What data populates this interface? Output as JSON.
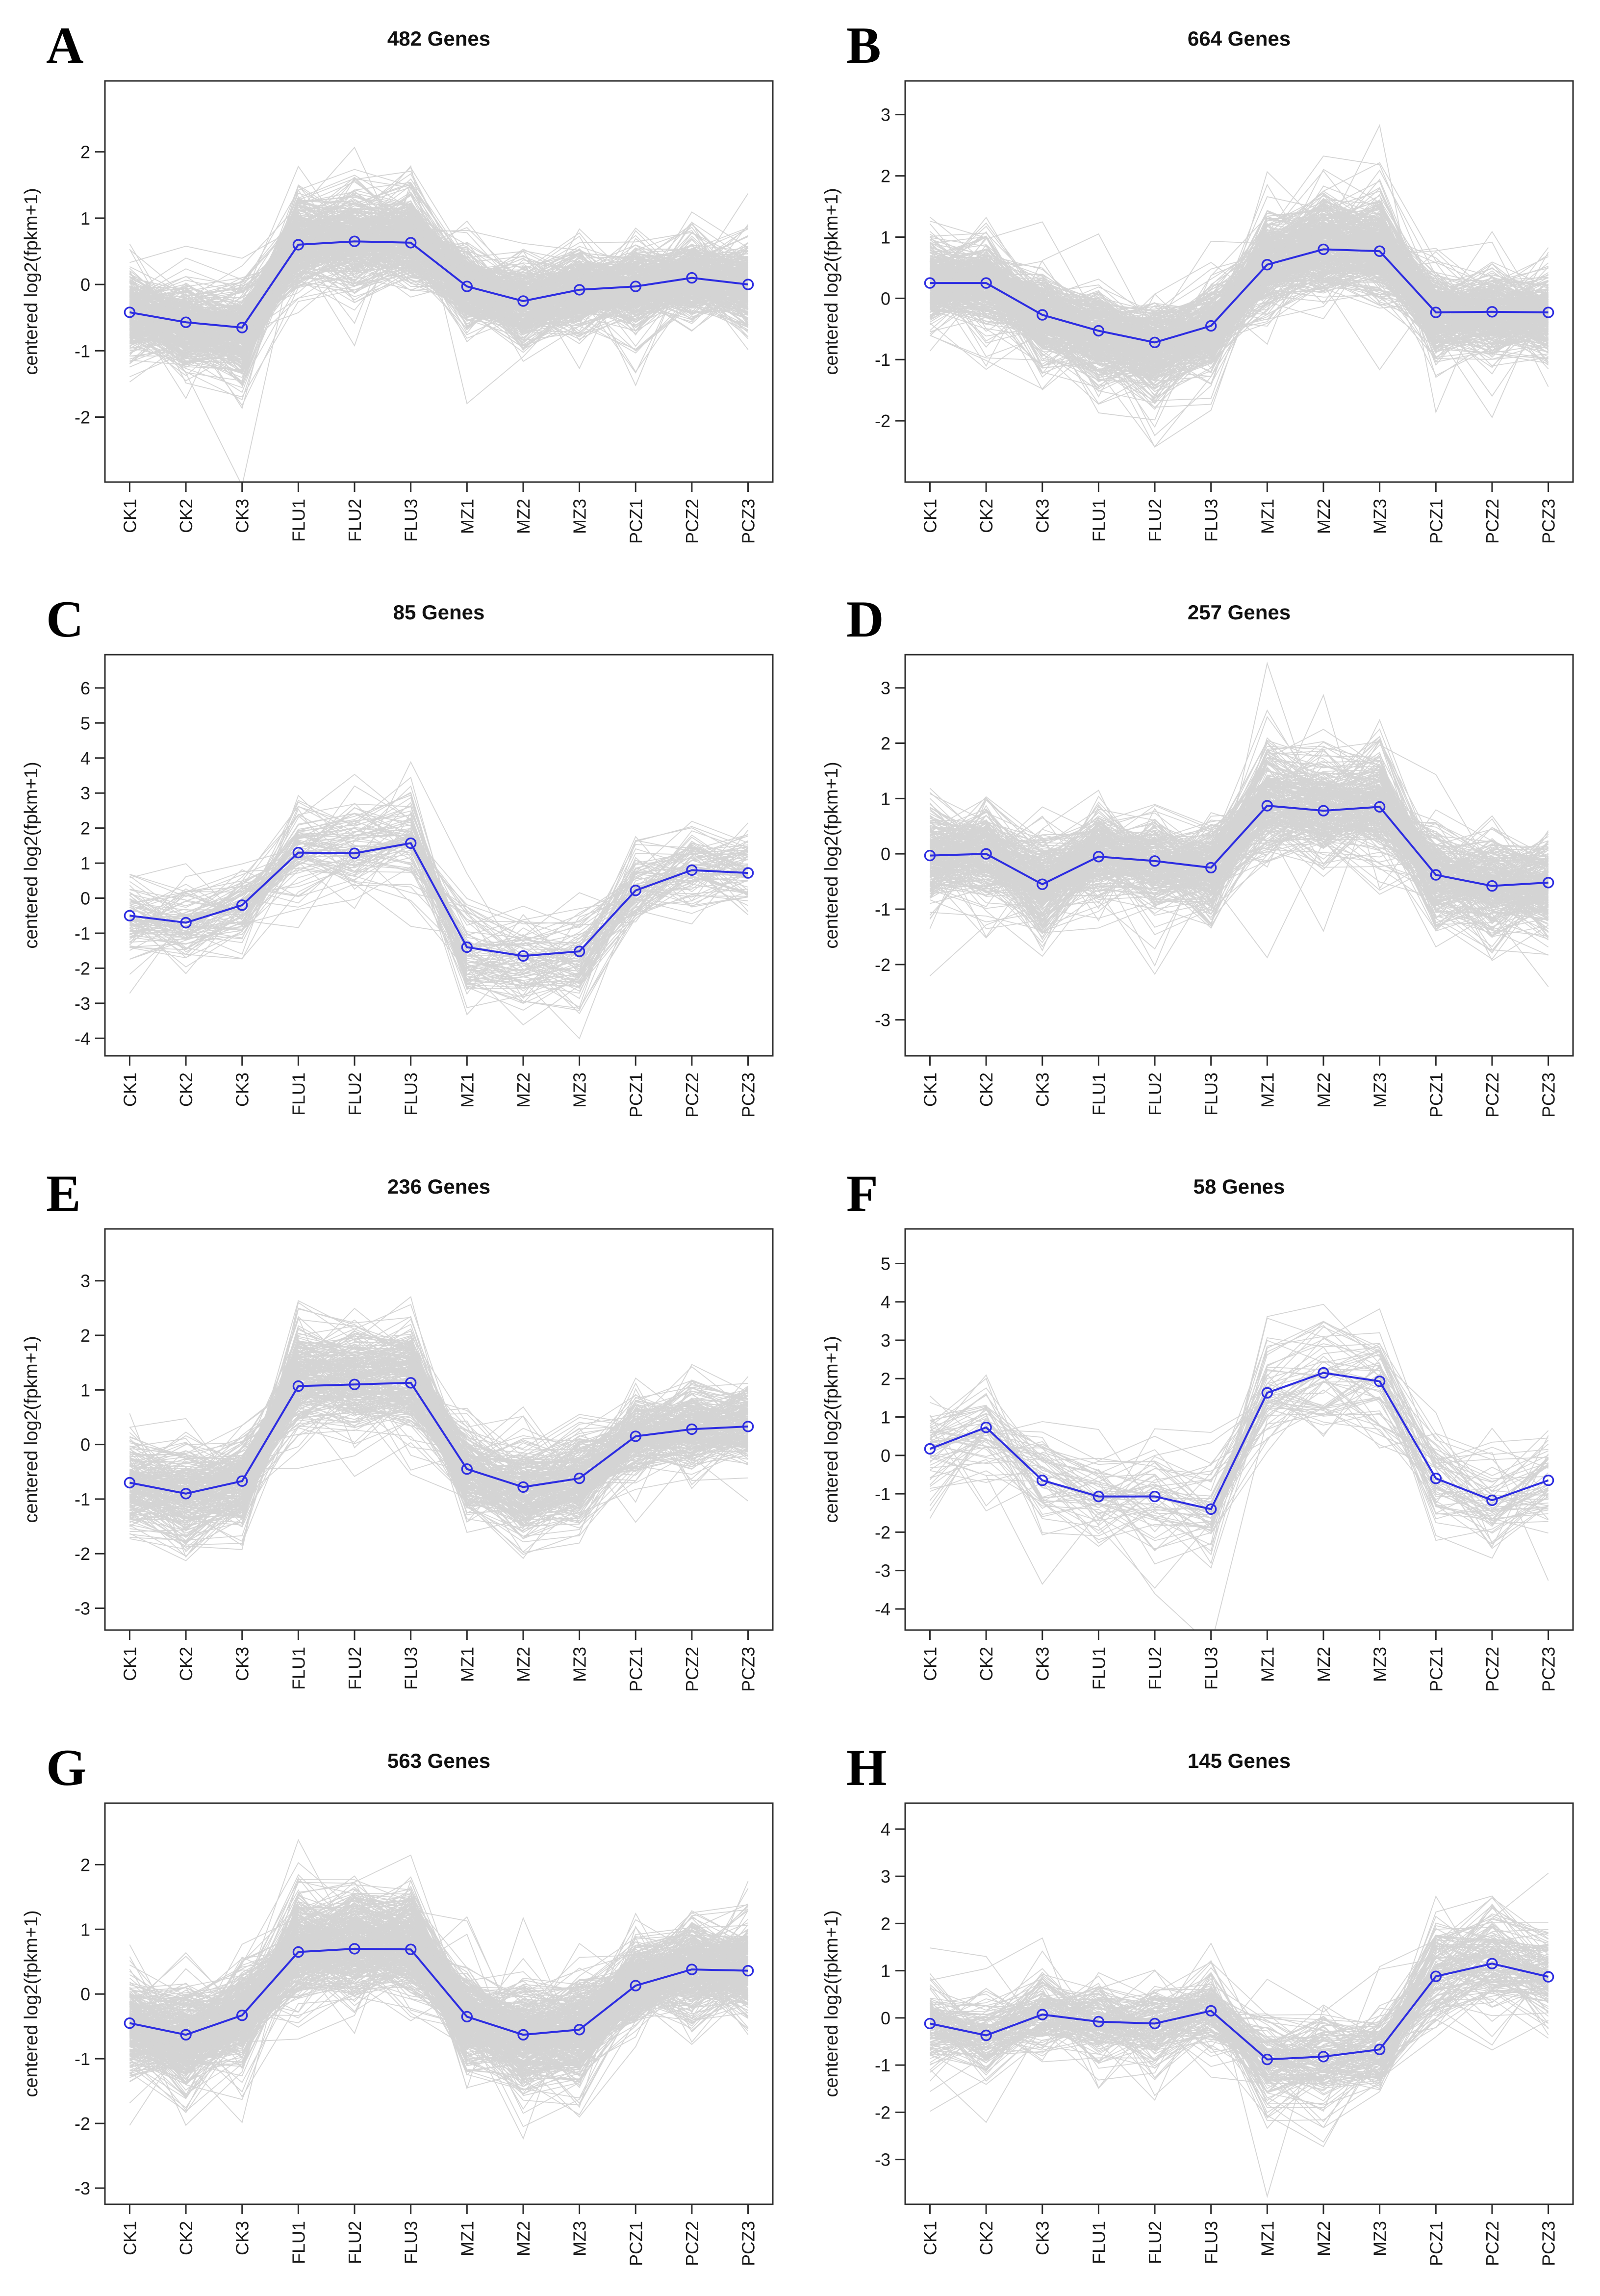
{
  "figure": {
    "colors": {
      "mean_line": "#2d2de1",
      "gene_lines": "#d4d4d4",
      "axis": "#2b2b2b",
      "text": "#1a1a1a",
      "background": "#ffffff"
    }
  },
  "chart_data": [
    {
      "type": "line",
      "panel": "A",
      "title": "482 Genes",
      "gene_count": 482,
      "categories": [
        "CK1",
        "CK2",
        "CK3",
        "FLU1",
        "FLU2",
        "FLU3",
        "MZ1",
        "MZ2",
        "MZ3",
        "PCZ1",
        "PCZ2",
        "PCZ3"
      ],
      "xlabel": "",
      "ylabel": "centered log2(fpkm+1)",
      "yticks": [
        -2,
        -1,
        0,
        1,
        2
      ],
      "ylim": [
        -2.98,
        3.07
      ],
      "grid": false,
      "band_hint": 0.28,
      "series": [
        {
          "name": "cluster mean",
          "values": [
            -0.42,
            -0.57,
            -0.65,
            0.6,
            0.65,
            0.63,
            -0.03,
            -0.25,
            -0.08,
            -0.03,
            0.1,
            0.0
          ]
        }
      ]
    },
    {
      "type": "line",
      "panel": "B",
      "title": "664 Genes",
      "gene_count": 664,
      "categories": [
        "CK1",
        "CK2",
        "CK3",
        "FLU1",
        "FLU2",
        "FLU3",
        "MZ1",
        "MZ2",
        "MZ3",
        "PCZ1",
        "PCZ2",
        "PCZ3"
      ],
      "xlabel": "",
      "ylabel": "centered log2(fpkm+1)",
      "yticks": [
        -2,
        -1,
        0,
        1,
        2,
        3
      ],
      "ylim": [
        -3.0,
        3.55
      ],
      "grid": false,
      "band_hint": 0.3,
      "series": [
        {
          "name": "cluster mean",
          "values": [
            0.25,
            0.25,
            -0.27,
            -0.53,
            -0.72,
            -0.45,
            0.55,
            0.8,
            0.77,
            -0.23,
            -0.22,
            -0.23
          ]
        }
      ]
    },
    {
      "type": "line",
      "panel": "C",
      "title": "85 Genes",
      "gene_count": 85,
      "categories": [
        "CK1",
        "CK2",
        "CK3",
        "FLU1",
        "FLU2",
        "FLU3",
        "MZ1",
        "MZ2",
        "MZ3",
        "PCZ1",
        "PCZ2",
        "PCZ3"
      ],
      "xlabel": "",
      "ylabel": "centered log2(fpkm+1)",
      "yticks": [
        -4,
        -3,
        -2,
        -1,
        0,
        1,
        2,
        3,
        4,
        5,
        6
      ],
      "ylim": [
        -4.5,
        6.95
      ],
      "grid": false,
      "band_hint": 0.52,
      "series": [
        {
          "name": "cluster mean",
          "values": [
            -0.5,
            -0.7,
            -0.2,
            1.3,
            1.28,
            1.57,
            -1.4,
            -1.65,
            -1.52,
            0.22,
            0.8,
            0.72
          ]
        }
      ]
    },
    {
      "type": "line",
      "panel": "D",
      "title": "257 Genes",
      "gene_count": 257,
      "categories": [
        "CK1",
        "CK2",
        "CK3",
        "FLU1",
        "FLU2",
        "FLU3",
        "MZ1",
        "MZ2",
        "MZ3",
        "PCZ1",
        "PCZ2",
        "PCZ3"
      ],
      "xlabel": "",
      "ylabel": "centered log2(fpkm+1)",
      "yticks": [
        -3,
        -2,
        -1,
        0,
        1,
        2,
        3
      ],
      "ylim": [
        -3.65,
        3.6
      ],
      "grid": false,
      "band_hint": 0.38,
      "series": [
        {
          "name": "cluster mean",
          "values": [
            -0.03,
            0.0,
            -0.55,
            -0.05,
            -0.13,
            -0.25,
            0.87,
            0.78,
            0.85,
            -0.38,
            -0.58,
            -0.52
          ]
        }
      ]
    },
    {
      "type": "line",
      "panel": "E",
      "title": "236 Genes",
      "gene_count": 236,
      "categories": [
        "CK1",
        "CK2",
        "CK3",
        "FLU1",
        "FLU2",
        "FLU3",
        "MZ1",
        "MZ2",
        "MZ3",
        "PCZ1",
        "PCZ2",
        "PCZ3"
      ],
      "xlabel": "",
      "ylabel": "centered log2(fpkm+1)",
      "yticks": [
        -3,
        -2,
        -1,
        0,
        1,
        2,
        3
      ],
      "ylim": [
        -3.4,
        3.95
      ],
      "grid": false,
      "band_hint": 0.33,
      "series": [
        {
          "name": "cluster mean",
          "values": [
            -0.7,
            -0.9,
            -0.67,
            1.07,
            1.1,
            1.13,
            -0.45,
            -0.78,
            -0.62,
            0.15,
            0.28,
            0.33
          ]
        }
      ]
    },
    {
      "type": "line",
      "panel": "F",
      "title": "58 Genes",
      "gene_count": 58,
      "categories": [
        "CK1",
        "CK2",
        "CK3",
        "FLU1",
        "FLU2",
        "FLU3",
        "MZ1",
        "MZ2",
        "MZ3",
        "PCZ1",
        "PCZ2",
        "PCZ3"
      ],
      "xlabel": "",
      "ylabel": "centered log2(fpkm+1)",
      "yticks": [
        -4,
        -3,
        -2,
        -1,
        0,
        1,
        2,
        3,
        4,
        5
      ],
      "ylim": [
        -4.55,
        5.9
      ],
      "grid": false,
      "band_hint": 0.58,
      "series": [
        {
          "name": "cluster mean",
          "values": [
            0.17,
            0.73,
            -0.65,
            -1.07,
            -1.07,
            -1.4,
            1.63,
            2.15,
            1.93,
            -0.6,
            -1.17,
            -0.65
          ]
        }
      ]
    },
    {
      "type": "line",
      "panel": "G",
      "title": "563 Genes",
      "gene_count": 563,
      "categories": [
        "CK1",
        "CK2",
        "CK3",
        "FLU1",
        "FLU2",
        "FLU3",
        "MZ1",
        "MZ2",
        "MZ3",
        "PCZ1",
        "PCZ2",
        "PCZ3"
      ],
      "xlabel": "",
      "ylabel": "centered log2(fpkm+1)",
      "yticks": [
        -3,
        -2,
        -1,
        0,
        1,
        2
      ],
      "ylim": [
        -3.25,
        2.95
      ],
      "grid": false,
      "band_hint": 0.3,
      "series": [
        {
          "name": "cluster mean",
          "values": [
            -0.45,
            -0.63,
            -0.33,
            0.65,
            0.7,
            0.69,
            -0.35,
            -0.63,
            -0.55,
            0.13,
            0.38,
            0.36
          ]
        }
      ]
    },
    {
      "type": "line",
      "panel": "H",
      "title": "145 Genes",
      "gene_count": 145,
      "categories": [
        "CK1",
        "CK2",
        "CK3",
        "FLU1",
        "FLU2",
        "FLU3",
        "MZ1",
        "MZ2",
        "MZ3",
        "PCZ1",
        "PCZ2",
        "PCZ3"
      ],
      "xlabel": "",
      "ylabel": "centered log2(fpkm+1)",
      "yticks": [
        -3,
        -2,
        -1,
        0,
        1,
        2,
        3,
        4
      ],
      "ylim": [
        -3.95,
        4.55
      ],
      "grid": false,
      "band_hint": 0.42,
      "series": [
        {
          "name": "cluster mean",
          "values": [
            -0.12,
            -0.37,
            0.07,
            -0.08,
            -0.12,
            0.15,
            -0.88,
            -0.82,
            -0.67,
            0.88,
            1.15,
            0.87
          ]
        }
      ]
    }
  ]
}
